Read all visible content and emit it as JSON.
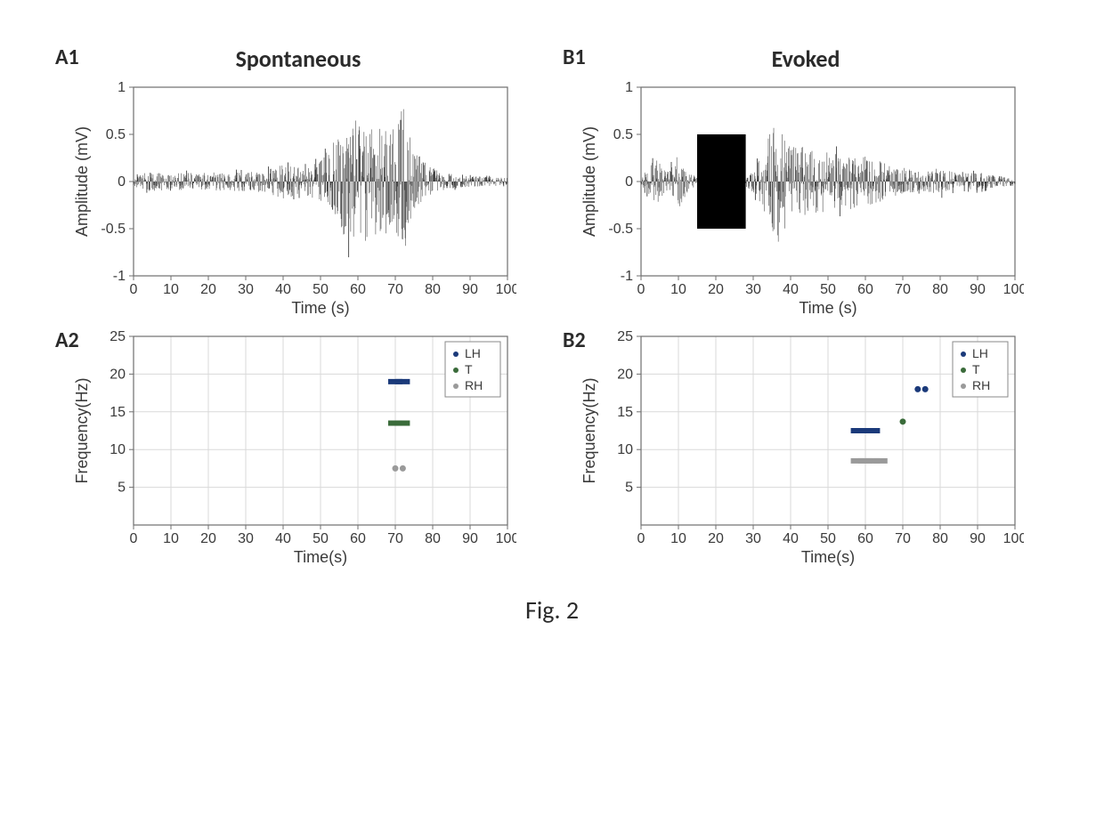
{
  "figure_caption": "Fig. 2",
  "columns": {
    "left_title": "Spontaneous",
    "right_title": "Evoked"
  },
  "panel_labels": {
    "A1": "A1",
    "A2": "A2",
    "B1": "B1",
    "B2": "B2"
  },
  "axis_style": {
    "frame_color": "#6f6f6f",
    "grid_color": "#d9d9d9",
    "text_color": "#3a3a3a",
    "tick_fontsize": 16,
    "label_fontsize": 18,
    "background": "#ffffff"
  },
  "amplitude_axis": {
    "xlabel": "Time (s)",
    "ylabel": "Amplitude (mV)",
    "xlim": [
      0,
      100
    ],
    "ylim": [
      -1,
      1
    ],
    "xticks": [
      0,
      10,
      20,
      30,
      40,
      50,
      60,
      70,
      80,
      90,
      100
    ],
    "yticks": [
      -1,
      -0.5,
      0,
      0.5,
      1
    ]
  },
  "frequency_axis": {
    "xlabel": "Time(s)",
    "ylabel": "Frequency(Hz)",
    "xlim": [
      0,
      100
    ],
    "ylim": [
      0,
      25
    ],
    "xticks": [
      0,
      10,
      20,
      30,
      40,
      50,
      60,
      70,
      80,
      90,
      100
    ],
    "yticks": [
      5,
      10,
      15,
      20,
      25
    ]
  },
  "traces": {
    "A1": {
      "type": "waveform",
      "color": "#2b2b2b",
      "line_width": 0.6,
      "envelope": [
        {
          "t": 0,
          "a": 0.05
        },
        {
          "t": 5,
          "a": 0.12
        },
        {
          "t": 10,
          "a": 0.08
        },
        {
          "t": 15,
          "a": 0.1
        },
        {
          "t": 20,
          "a": 0.09
        },
        {
          "t": 25,
          "a": 0.11
        },
        {
          "t": 30,
          "a": 0.1
        },
        {
          "t": 35,
          "a": 0.12
        },
        {
          "t": 40,
          "a": 0.18
        },
        {
          "t": 45,
          "a": 0.14
        },
        {
          "t": 50,
          "a": 0.22
        },
        {
          "t": 55,
          "a": 0.5
        },
        {
          "t": 58,
          "a": 0.7
        },
        {
          "t": 60,
          "a": 0.65
        },
        {
          "t": 65,
          "a": 0.6
        },
        {
          "t": 70,
          "a": 0.55
        },
        {
          "t": 72,
          "a": 0.8
        },
        {
          "t": 75,
          "a": 0.35
        },
        {
          "t": 78,
          "a": 0.2
        },
        {
          "t": 82,
          "a": 0.1
        },
        {
          "t": 88,
          "a": 0.06
        },
        {
          "t": 95,
          "a": 0.05
        },
        {
          "t": 100,
          "a": 0.04
        }
      ]
    },
    "B1": {
      "type": "waveform",
      "color": "#2b2b2b",
      "line_width": 0.6,
      "stim_block": {
        "t0": 15,
        "t1": 28,
        "a": 0.5,
        "color": "#000000"
      },
      "envelope": [
        {
          "t": 0,
          "a": 0.05
        },
        {
          "t": 4,
          "a": 0.25
        },
        {
          "t": 7,
          "a": 0.1
        },
        {
          "t": 10,
          "a": 0.3
        },
        {
          "t": 13,
          "a": 0.08
        },
        {
          "t": 15,
          "a": 0.05
        },
        {
          "t": 28,
          "a": 0.05
        },
        {
          "t": 30,
          "a": 0.12
        },
        {
          "t": 33,
          "a": 0.35
        },
        {
          "t": 36,
          "a": 0.7
        },
        {
          "t": 40,
          "a": 0.4
        },
        {
          "t": 45,
          "a": 0.35
        },
        {
          "t": 50,
          "a": 0.32
        },
        {
          "t": 55,
          "a": 0.3
        },
        {
          "t": 60,
          "a": 0.28
        },
        {
          "t": 65,
          "a": 0.2
        },
        {
          "t": 70,
          "a": 0.15
        },
        {
          "t": 75,
          "a": 0.1
        },
        {
          "t": 80,
          "a": 0.15
        },
        {
          "t": 85,
          "a": 0.08
        },
        {
          "t": 90,
          "a": 0.1
        },
        {
          "t": 95,
          "a": 0.06
        },
        {
          "t": 100,
          "a": 0.05
        }
      ]
    }
  },
  "legend": {
    "items": [
      {
        "label": "LH",
        "color": "#1b3a7a",
        "marker": "dot"
      },
      {
        "label": "T",
        "color": "#3a6b3a",
        "marker": "dot"
      },
      {
        "label": "RH",
        "color": "#9a9a9a",
        "marker": "dot"
      }
    ],
    "frame_color": "#8a8a8a",
    "fontsize": 14
  },
  "scatter": {
    "A2": [
      {
        "t": 70,
        "f": 19.0,
        "series": "LH",
        "bar": true
      },
      {
        "t": 72,
        "f": 19.0,
        "series": "LH",
        "bar": true
      },
      {
        "t": 70,
        "f": 13.5,
        "series": "T",
        "bar": true
      },
      {
        "t": 72,
        "f": 13.5,
        "series": "T",
        "bar": true
      },
      {
        "t": 70,
        "f": 7.5,
        "series": "RH",
        "bar": false
      },
      {
        "t": 72,
        "f": 7.5,
        "series": "RH",
        "bar": false
      }
    ],
    "B2": [
      {
        "t": 58,
        "f": 12.5,
        "series": "LH",
        "bar": true
      },
      {
        "t": 60,
        "f": 12.5,
        "series": "LH",
        "bar": true
      },
      {
        "t": 62,
        "f": 12.5,
        "series": "LH",
        "bar": true
      },
      {
        "t": 70,
        "f": 13.7,
        "series": "T",
        "bar": false
      },
      {
        "t": 74,
        "f": 18.0,
        "series": "LH",
        "bar": false
      },
      {
        "t": 76,
        "f": 18.0,
        "series": "LH",
        "bar": false
      },
      {
        "t": 58,
        "f": 8.5,
        "series": "RH",
        "bar": true
      },
      {
        "t": 60,
        "f": 8.5,
        "series": "RH",
        "bar": true
      },
      {
        "t": 62,
        "f": 8.5,
        "series": "RH",
        "bar": true
      },
      {
        "t": 64,
        "f": 8.5,
        "series": "RH",
        "bar": true
      }
    ]
  },
  "series_colors": {
    "LH": "#1b3a7a",
    "T": "#3a6b3a",
    "RH": "#9a9a9a"
  },
  "plot_geometry": {
    "amp_width": 500,
    "amp_height": 270,
    "freq_width": 500,
    "freq_height": 270,
    "margin": {
      "l": 70,
      "r": 10,
      "t": 10,
      "b": 48
    }
  }
}
